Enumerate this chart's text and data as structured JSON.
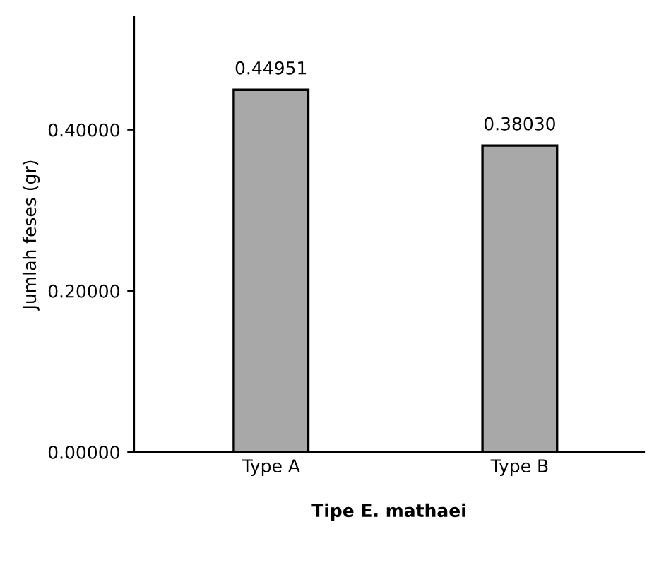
{
  "chart_data": {
    "type": "bar",
    "xlabel": "Tipe E. mathaei",
    "ylabel": "Jumlah feses (gr)",
    "categories": [
      "Type A",
      "Type B"
    ],
    "series": [
      {
        "color": "#a8a8a8",
        "values": [
          0.44951,
          0.3803
        ],
        "value_labels": [
          "0.44951",
          "0.38030"
        ]
      }
    ],
    "ylim": [
      0,
      0.54
    ],
    "yticks": [
      {
        "value": 0,
        "label": "0.00000"
      },
      {
        "value": 0.2,
        "label": "0.20000"
      },
      {
        "value": 0.4,
        "label": "0.40000"
      }
    ],
    "grid": false,
    "legend": false
  }
}
